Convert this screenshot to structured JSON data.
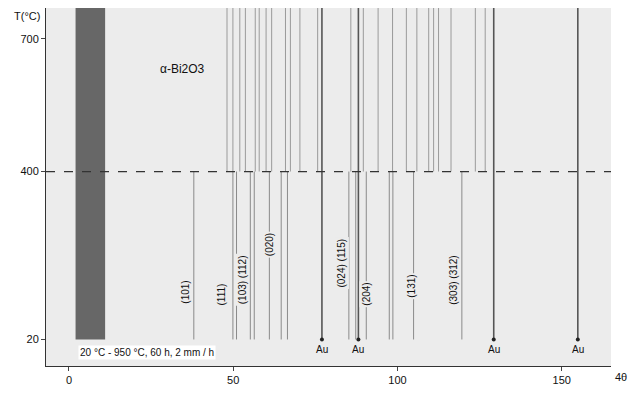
{
  "chart_data": {
    "type": "line",
    "x_label": "4θ",
    "y_label": "T(°C)",
    "xlim": [
      -7,
      165
    ],
    "ylim": [
      -40,
      770
    ],
    "xticks": [
      0,
      50,
      100,
      150
    ],
    "yticks": [
      20,
      400,
      700
    ],
    "grid": false,
    "series": [
      {
        "name": "α-Bi2O3",
        "color": "#8a8a8a",
        "x": [
          38.0,
          49.9,
          51.0,
          55.2,
          56.4,
          61.0,
          64.6,
          66.5,
          85.2,
          87.3,
          90.5,
          97.5,
          98.6,
          104.9,
          119.6
        ],
        "t_range": [
          20,
          400
        ]
      },
      {
        "color": "#9a9a9a",
        "x": [
          48.1,
          49.9,
          52.0,
          53.7,
          56.7,
          57.9,
          60.0,
          61.7,
          65.9,
          67.4,
          70.3,
          75.7,
          85.8,
          89.6,
          94.1,
          98.5,
          102.7,
          105.9,
          109.5,
          111.0,
          112.5,
          116.3,
          123.7,
          126.7
        ],
        "t_range": [
          400,
          770
        ]
      },
      {
        "name": "Au",
        "color": "#555555",
        "x": [
          77.0,
          88.1,
          129.3,
          154.9
        ],
        "t_range": [
          20,
          770
        ]
      }
    ],
    "shaded_band": {
      "x": [
        2,
        11
      ],
      "t_range": [
        20,
        770
      ],
      "color": "#505050"
    },
    "reference_line": {
      "y": 400,
      "line_style": "dash",
      "color": "#333333"
    },
    "annotations": [
      {
        "text": "α-Bi2O3",
        "x": 34.7,
        "y": 631
      },
      {
        "text": "20 °C - 950 °C, 60 h, 2 mm / h",
        "x": 2.7,
        "y": 20
      }
    ],
    "reflection_labels": [
      {
        "text": "(101)",
        "x": 35.6,
        "y": 128
      },
      {
        "text": "(111)",
        "x": 46.3,
        "y": 122
      },
      {
        "text": "(103) (112)",
        "x": 52.8,
        "y": 155
      },
      {
        "text": "(020)",
        "x": 61.1,
        "y": 235
      },
      {
        "text": "(024) (115)",
        "x": 83.1,
        "y": 194
      },
      {
        "text": "(204)",
        "x": 90.5,
        "y": 122
      },
      {
        "text": "(131)",
        "x": 104.2,
        "y": 140
      },
      {
        "text": "(303) (312)",
        "x": 117.2,
        "y": 155
      }
    ]
  }
}
